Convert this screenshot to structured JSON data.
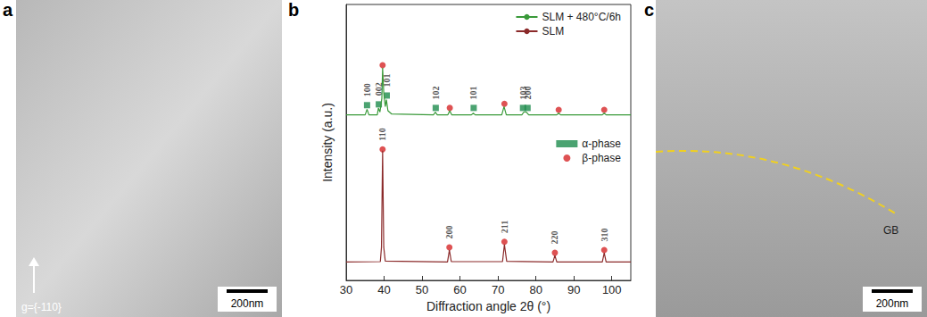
{
  "chart_data": {
    "type": "line",
    "x_label": "Diffraction angle 2θ (°)",
    "y_label": "Intensity (a.u.)",
    "xlim": [
      30,
      105
    ],
    "xticks": [
      30,
      40,
      50,
      60,
      70,
      80,
      90,
      100
    ],
    "ylim": [
      0,
      100
    ],
    "tick_labels": "x",
    "grid": false,
    "legend": "upper right",
    "series": [
      {
        "name": "SLM + 480°C/6h",
        "type": "line",
        "color": "#3a9a3a",
        "line_style": "solid",
        "x": [
          30,
          35,
          35.5,
          36,
          38.2,
          38.5,
          38.9,
          39.4,
          39.6,
          39.9,
          40.3,
          40.6,
          41,
          42,
          53,
          53.5,
          54,
          56.8,
          57.3,
          57.8,
          63,
          63.5,
          64,
          71,
          71.6,
          72.2,
          76.3,
          76.8,
          77.5,
          78.1,
          85.5,
          86,
          86.5,
          97.5,
          98,
          98.5,
          105
        ],
        "values": [
          60,
          60,
          62,
          60,
          60,
          62.5,
          61,
          66,
          77,
          68,
          63,
          65.5,
          61.5,
          60.3,
          60,
          61,
          60,
          60,
          61.5,
          60,
          60,
          60.6,
          60,
          60,
          63,
          60,
          60,
          61,
          61,
          60,
          60,
          60.6,
          60,
          60,
          60.6,
          60,
          60
        ]
      },
      {
        "name": "SLM",
        "type": "line",
        "color": "#8b2a2a",
        "line_style": "solid",
        "x": [
          30,
          39,
          39.3,
          39.6,
          39.9,
          40.3,
          56.7,
          57.2,
          57.7,
          71.2,
          71.7,
          72.3,
          84.5,
          85,
          85.5,
          97.5,
          98,
          98.5,
          105
        ],
        "values": [
          6.7,
          6.8,
          12,
          47,
          12,
          7,
          6.7,
          11,
          6.8,
          6.8,
          13,
          6.9,
          6.7,
          9,
          6.7,
          6.7,
          10,
          6.7,
          6.7
        ]
      },
      {
        "name": "α-phase",
        "type": "scatter",
        "color": "#1e8c4e",
        "marker": "square",
        "x": [
          35.5,
          38.6,
          40.7,
          53.6,
          63.6,
          76.6,
          77.8
        ],
        "values": [
          63.5,
          63.8,
          67,
          62.5,
          62.5,
          62.5,
          62.5
        ],
        "labels": [
          "100",
          "002",
          "101",
          "102",
          "101",
          "103",
          "200"
        ]
      },
      {
        "name": "β-phase",
        "type": "scatter",
        "color": "#d62728",
        "marker": "circle",
        "x": [
          39.6,
          57.3,
          71.7,
          86,
          98,
          39.6,
          57.2,
          71.7,
          85,
          98
        ],
        "values": [
          78,
          62.5,
          64,
          61.8,
          61.8,
          47.5,
          12,
          14,
          10,
          11
        ],
        "labels": [
          null,
          null,
          null,
          null,
          null,
          "110",
          "200",
          "211",
          "220",
          "310"
        ]
      }
    ]
  },
  "panels": [
    {
      "label": "a",
      "scale_bar": "200nm",
      "annotation": "g={-110}"
    },
    {
      "label": "b"
    },
    {
      "label": "c",
      "scale_bar": "200nm",
      "annotation": "GB"
    }
  ]
}
